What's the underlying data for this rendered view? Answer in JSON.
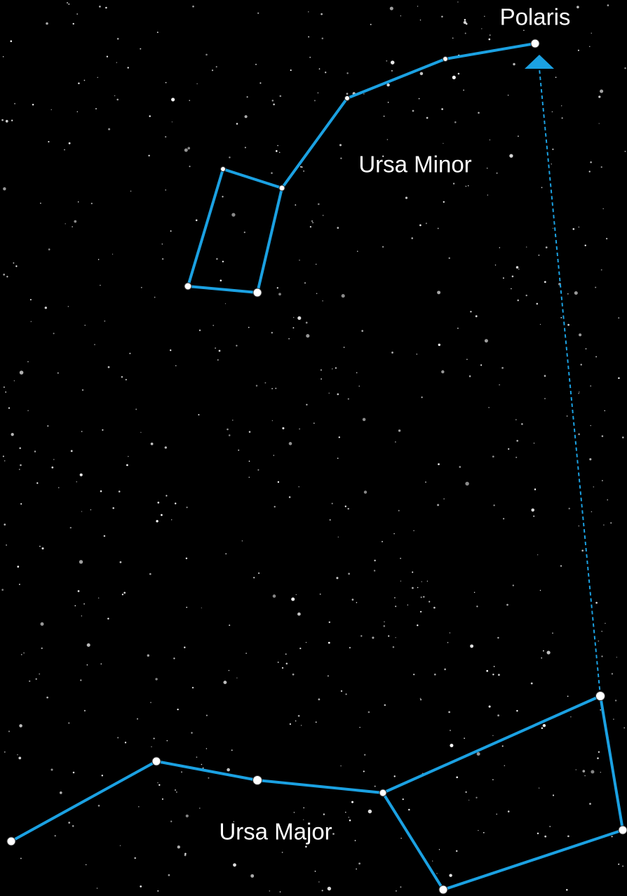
{
  "labels": {
    "polaris": "Polaris",
    "ursa_minor": "Ursa Minor",
    "ursa_major": "Ursa Major"
  }
}
